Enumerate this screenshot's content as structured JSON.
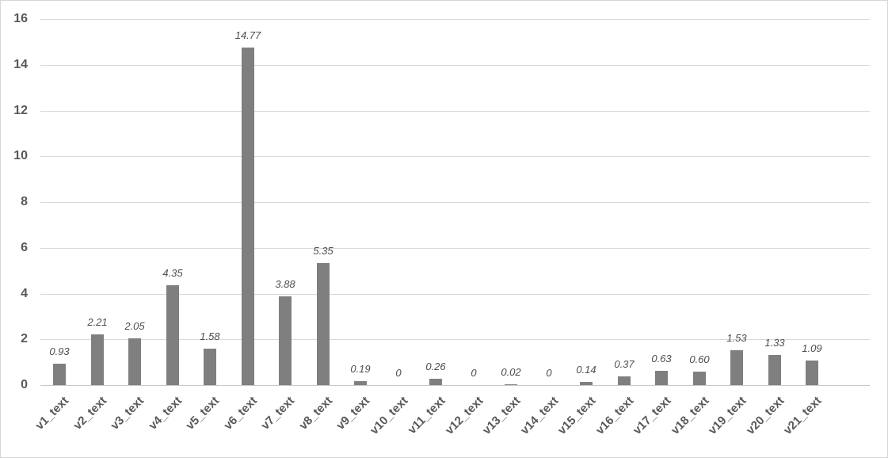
{
  "chart_data": {
    "type": "bar",
    "title": "",
    "xlabel": "",
    "ylabel": "",
    "categories": [
      "v1_text",
      "v2_text",
      "v3_text",
      "v4_text",
      "v5_text",
      "v6_text",
      "v7_text",
      "v8_text",
      "v9_text",
      "v10_text",
      "v11_text",
      "v12_text",
      "v13_text",
      "v14_text",
      "v15_text",
      "v16_text",
      "v17_text",
      "v18_text",
      "v19_text",
      "v20_text",
      "v21_text"
    ],
    "values": [
      0.93,
      2.21,
      2.05,
      4.35,
      1.58,
      14.77,
      3.88,
      5.35,
      0.19,
      0,
      0.26,
      0,
      0.02,
      0,
      0.14,
      0.37,
      0.63,
      0.6,
      1.53,
      1.33,
      1.09
    ],
    "data_labels": [
      "0.93",
      "2.21",
      "2.05",
      "4.35",
      "1.58",
      "14.77",
      "3.88",
      "5.35",
      "0.19",
      "0",
      "0.26",
      "0",
      "0.02",
      "0",
      "0.14",
      "0.37",
      "0.63",
      "0.60",
      "1.53",
      "1.33",
      "1.09"
    ],
    "yticks": [
      "0",
      "2",
      "4",
      "6",
      "8",
      "10",
      "12",
      "14",
      "16"
    ],
    "ylim": [
      0,
      16
    ],
    "ytick_interval": 2,
    "grid": true,
    "legend": "none",
    "data_label_style": "italic",
    "colors": {
      "bar": "#7f7f7f",
      "gridline": "#d9d9d9",
      "axis_line": "#c9c9c9",
      "tick_label": "#595959",
      "data_label": "#4d4d4d",
      "background": "#ffffff",
      "border": "#d6d6d6"
    }
  }
}
